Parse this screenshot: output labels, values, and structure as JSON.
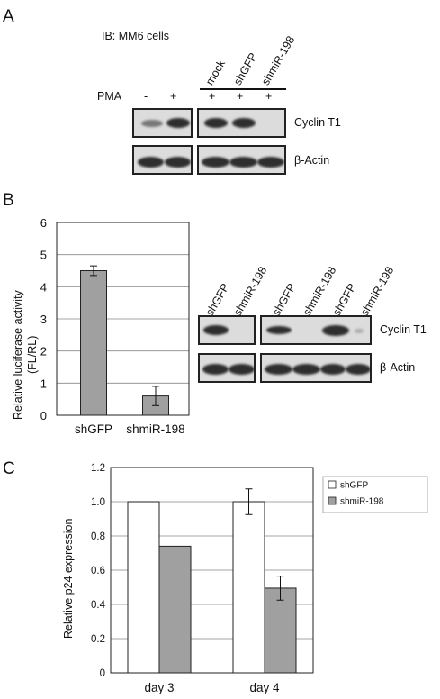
{
  "panelA": {
    "letter": "A",
    "title": "IB: MM6 cells",
    "pma_label": "PMA",
    "pma_left": [
      "-",
      "+"
    ],
    "pma_right": [
      "+",
      "+",
      "+"
    ],
    "lanes": [
      "mock",
      "shGFP",
      "shmiR-198"
    ],
    "row1_label": "Cyclin T1",
    "row2_label": "β-Actin"
  },
  "panelB": {
    "letter": "B",
    "blot_lanes": [
      "shGFP",
      "shmiR-198",
      "shGFP",
      "shmiR-198",
      "shGFP",
      "shmiR-198"
    ],
    "row1_label": "Cyclin T1",
    "row2_label": "β-Actin"
  },
  "panelC": {
    "letter": "C"
  },
  "chart_data": [
    {
      "type": "bar",
      "categories": [
        "shGFP",
        "shmiR-198"
      ],
      "values": [
        4.5,
        0.6
      ],
      "errors": [
        0.15,
        0.3
      ],
      "ylabel": "Relative luciferase activity (FL/RL)",
      "ylabel_line1": "Relative luciferase activity",
      "ylabel_line2": "(FL/RL)",
      "ylim": [
        0,
        6
      ],
      "yticks": [
        "0",
        "1",
        "2",
        "3",
        "4",
        "5",
        "6"
      ],
      "bar_color": "#a0a0a0",
      "grid": true
    },
    {
      "type": "bar",
      "categories": [
        "day 3",
        "day 4"
      ],
      "series": [
        {
          "name": "shGFP",
          "values": [
            1.0,
            1.0
          ],
          "errors": [
            0,
            0.075
          ],
          "color": "#ffffff"
        },
        {
          "name": "shmiR-198",
          "values": [
            0.74,
            0.495
          ],
          "errors": [
            0,
            0.07
          ],
          "color": "#a0a0a0"
        }
      ],
      "ylabel": "Relative p24 expression",
      "ylim": [
        0,
        1.2
      ],
      "yticks": [
        "0",
        "0.2",
        "0.4",
        "0.6",
        "0.8",
        "1.0",
        "1.2"
      ],
      "legend_position": "top-right",
      "grid": true
    }
  ]
}
